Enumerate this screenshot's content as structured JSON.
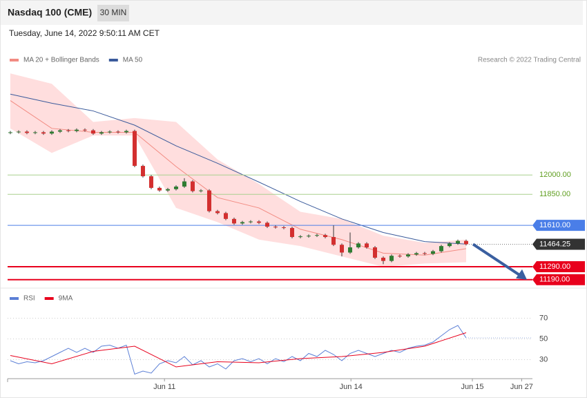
{
  "header": {
    "title": "Nasdaq 100 (CME)",
    "interval": "30 MIN",
    "timestamp": "Tuesday, June 14, 2022 9:50:11 AM CET"
  },
  "chart_data": [
    {
      "type": "candlestick",
      "copyright": "Research © 2022 Trading Central",
      "up_color": "#2e7d32",
      "down_color": "#d32f2f",
      "open": [
        12325,
        12330,
        12335,
        12325,
        12330,
        12320,
        12335,
        12345,
        12340,
        12350,
        12345,
        12320,
        12330,
        12335,
        12330,
        12340,
        12070,
        11990,
        11900,
        11880,
        11890,
        11910,
        11950,
        11875,
        11880,
        11720,
        11705,
        11660,
        11625,
        11635,
        11640,
        11630,
        11600,
        11595,
        11590,
        11520,
        11525,
        11530,
        11535,
        11520,
        11460,
        11400,
        11440,
        11470,
        11440,
        11360,
        11335,
        11375,
        11370,
        11385,
        11395,
        11390,
        11410,
        11450,
        11470,
        11490
      ],
      "high": [
        12340,
        12345,
        12345,
        12340,
        12340,
        12345,
        12355,
        12355,
        12360,
        12360,
        12355,
        12340,
        12345,
        12345,
        12350,
        12350,
        12080,
        12000,
        11910,
        11900,
        11920,
        11975,
        11960,
        11890,
        11890,
        11730,
        11715,
        11670,
        11645,
        11650,
        11650,
        11640,
        11610,
        11605,
        11600,
        11535,
        11540,
        11545,
        11545,
        11610,
        11470,
        11555,
        11480,
        11480,
        11450,
        11370,
        11385,
        11385,
        11395,
        11405,
        11405,
        11420,
        11460,
        11480,
        11500,
        11500
      ],
      "low": [
        12315,
        12320,
        12315,
        12315,
        12310,
        12310,
        12325,
        12330,
        12330,
        12335,
        12310,
        12310,
        12320,
        12320,
        12320,
        12060,
        11980,
        11890,
        11870,
        11870,
        11880,
        11900,
        11865,
        11865,
        11710,
        11695,
        11650,
        11615,
        11615,
        11625,
        11620,
        11590,
        11585,
        11580,
        11510,
        11510,
        11515,
        11520,
        11510,
        11450,
        11370,
        11390,
        11430,
        11430,
        11350,
        11310,
        11325,
        11360,
        11360,
        11375,
        11380,
        11380,
        11400,
        11440,
        11460,
        11455
      ],
      "close": [
        12330,
        12335,
        12325,
        12330,
        12320,
        12335,
        12345,
        12340,
        12350,
        12345,
        12320,
        12330,
        12335,
        12330,
        12340,
        12070,
        11990,
        11900,
        11880,
        11890,
        11910,
        11950,
        11875,
        11880,
        11720,
        11705,
        11660,
        11625,
        11635,
        11640,
        11630,
        11600,
        11595,
        11590,
        11520,
        11525,
        11530,
        11535,
        11520,
        11460,
        11400,
        11440,
        11470,
        11440,
        11360,
        11335,
        11375,
        11370,
        11385,
        11395,
        11390,
        11410,
        11450,
        11470,
        11490,
        11464.25
      ],
      "series": [
        {
          "name": "MA 20 + Bollinger Bands",
          "color": "#f28b82",
          "band_color": "#ffdede",
          "x": [
            0,
            5,
            10,
            15,
            20,
            25,
            30,
            35,
            40,
            45,
            50,
            55
          ],
          "values": [
            12575,
            12360,
            12330,
            12330,
            12065,
            11825,
            11745,
            11580,
            11500,
            11395,
            11380,
            11430
          ],
          "upper": [
            12785,
            12705,
            12410,
            12440,
            12410,
            12120,
            11930,
            11715,
            11660,
            11530,
            11475,
            11500
          ],
          "lower": [
            12360,
            12170,
            12305,
            12305,
            11745,
            11635,
            11500,
            11450,
            11370,
            11290,
            11315,
            11325
          ]
        },
        {
          "name": "MA 50",
          "color": "#3a5a9b",
          "x": [
            0,
            5,
            10,
            15,
            20,
            25,
            30,
            35,
            40,
            45,
            50,
            55
          ],
          "values": [
            12625,
            12555,
            12495,
            12385,
            12225,
            12090,
            11945,
            11795,
            11660,
            11555,
            11485,
            11465
          ]
        }
      ],
      "levels": [
        {
          "value": 12000,
          "label": "12000.00",
          "color": "#a8d08d",
          "text_color": "#5f9e1f",
          "box": false
        },
        {
          "value": 11850,
          "label": "11850.00",
          "color": "#a8d08d",
          "text_color": "#5f9e1f",
          "box": false
        },
        {
          "value": 11610,
          "label": "11610.00",
          "color": "#4a7ee8",
          "text_color": "#ffffff",
          "box": true
        },
        {
          "value": 11464.25,
          "label": "11464.25",
          "color": "#333333",
          "text_color": "#ffffff",
          "box": true,
          "dotted": true
        },
        {
          "value": 11290,
          "label": "11290.00",
          "color": "#e8001c",
          "text_color": "#ffffff",
          "box": true
        },
        {
          "value": 11190,
          "label": "11190.00",
          "color": "#e8001c",
          "text_color": "#ffffff",
          "box": true
        }
      ],
      "ylim": [
        11130,
        12840
      ],
      "xlim": [
        -0.33,
        63
      ]
    },
    {
      "type": "line",
      "series": [
        {
          "name": "RSI",
          "color": "#5b7fd6",
          "values": [
            29,
            26,
            28,
            27,
            29,
            33,
            37,
            41,
            37,
            41,
            37,
            43,
            44,
            41,
            44,
            16,
            19,
            17,
            26,
            29,
            27,
            33,
            25,
            29,
            23,
            26,
            21,
            29,
            31,
            28,
            31,
            26,
            31,
            28,
            33,
            29,
            36,
            33,
            39,
            35,
            29,
            36,
            39,
            36,
            33,
            36,
            39,
            37,
            41,
            43,
            44,
            47,
            53,
            59,
            63,
            51
          ]
        },
        {
          "name": "9MA",
          "color": "#e8001c",
          "x": [
            0,
            5,
            10,
            15,
            20,
            25,
            30,
            35,
            40,
            45,
            50,
            55
          ],
          "values": [
            34,
            26,
            38,
            43,
            23,
            28,
            27,
            31,
            33,
            37,
            43,
            56
          ]
        }
      ],
      "ylim": [
        13,
        83
      ],
      "yticks": [
        30,
        50,
        70
      ],
      "xlim": [
        -0.33,
        63
      ],
      "xticks": [
        {
          "value": 18.6,
          "label": "Jun 11"
        },
        {
          "value": 41.1,
          "label": "Jun 14"
        },
        {
          "value": 55.75,
          "label": "Jun 15"
        },
        {
          "value": 61.7,
          "label": "Jun 27"
        }
      ]
    }
  ]
}
